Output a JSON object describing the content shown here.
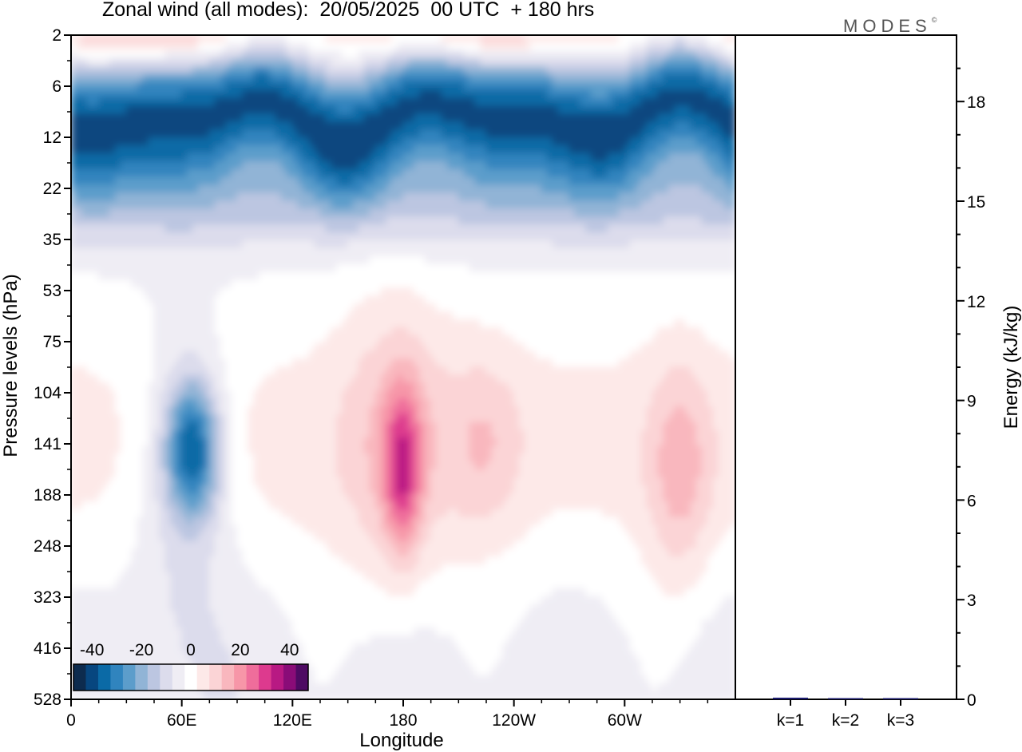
{
  "title": "Zonal wind (all modes):  20/05/2025  00 UTC  + 180 hrs",
  "logo": "MODES",
  "logo_mark": "©",
  "chart_data": [
    {
      "type": "heatmap",
      "title": "Zonal wind (all modes):  20/05/2025  00 UTC  + 180 hrs",
      "xlabel": "Longitude",
      "ylabel": "Pressure levels (hPa)",
      "x_tick_labels": [
        "0",
        "60E",
        "120E",
        "180",
        "120W",
        "60W"
      ],
      "x_ticks_deg": [
        0,
        60,
        120,
        180,
        240,
        300
      ],
      "xlim": [
        0,
        360
      ],
      "y_tick_labels": [
        "2",
        "6",
        "12",
        "22",
        "35",
        "53",
        "75",
        "104",
        "141",
        "188",
        "248",
        "323",
        "416",
        "528"
      ],
      "y_scale": "model levels (log-like), top = 2 hPa",
      "colorbar": {
        "tick_labels": [
          "-40",
          "-20",
          "0",
          "20",
          "40"
        ],
        "levels": [
          -45,
          -40,
          -35,
          -30,
          -25,
          -20,
          -15,
          -10,
          -5,
          0,
          5,
          10,
          15,
          20,
          25,
          30,
          35,
          40,
          45
        ],
        "colors": [
          "#0d2b4e",
          "#07467f",
          "#0b6aa6",
          "#3084be",
          "#5c9dcb",
          "#91b4d6",
          "#bcc6e1",
          "#dcdcec",
          "#efedf4",
          "#ffffff",
          "#fde9e8",
          "#fbd4d6",
          "#f9b7be",
          "#f796a8",
          "#ef6d9b",
          "#dd3a8e",
          "#b81983",
          "#8a0c78",
          "#4e0a63"
        ]
      },
      "features": [
        {
          "name": "stratospheric easterlies",
          "level_range_hPa": [
            6,
            35
          ],
          "value": -30
        },
        {
          "name": "upper westerlies",
          "level_range_hPa": [
            2,
            4
          ],
          "value": 15
        },
        {
          "name": "tropical easterly jet core near 60E",
          "level_range_hPa": [
            104,
            188
          ],
          "value": -30
        },
        {
          "name": "westerly maximum near 180",
          "level_range_hPa": [
            104,
            188
          ],
          "value": 25
        },
        {
          "name": "westerly region near 60W",
          "level_range_hPa": [
            104,
            248
          ],
          "value": 15
        }
      ]
    },
    {
      "type": "bar",
      "ylabel": "Energy (kJ/kg)",
      "categories": [
        "k=1",
        "k=2",
        "k=3"
      ],
      "values": [
        0.05,
        0.03,
        0.03
      ],
      "ylim": [
        0,
        20
      ],
      "y_tick_labels": [
        "0",
        "3",
        "6",
        "9",
        "12",
        "15",
        "18"
      ],
      "bar_color": "#1a1a6e"
    }
  ]
}
